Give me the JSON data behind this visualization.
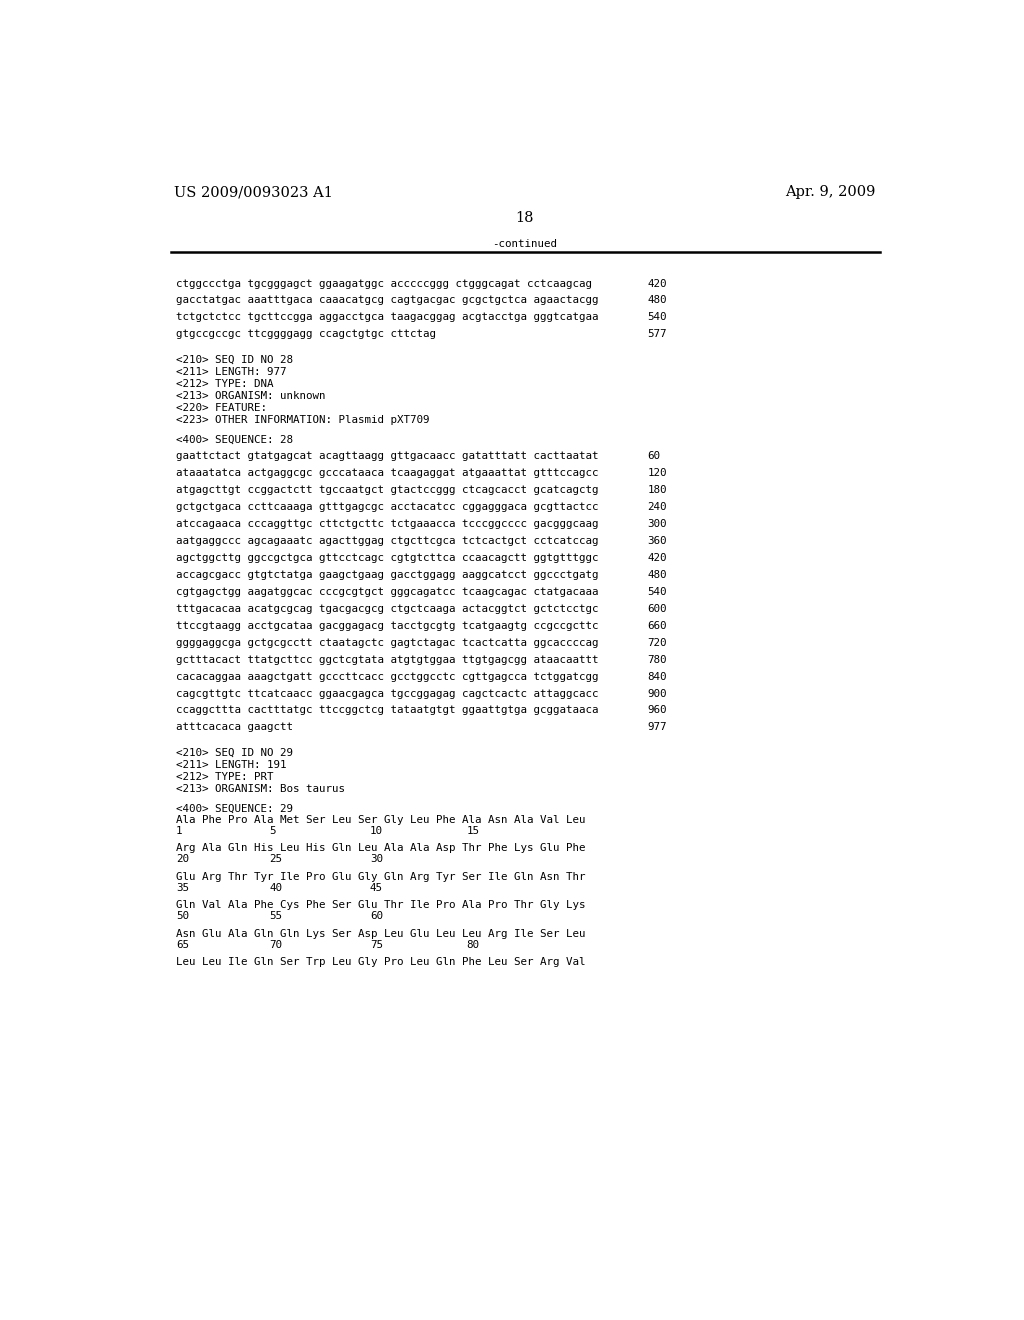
{
  "header_left": "US 2009/0093023 A1",
  "header_right": "Apr. 9, 2009",
  "page_number": "18",
  "continued_label": "-continued",
  "bg_color": "#ffffff",
  "text_color": "#000000",
  "font_size_header": 10.5,
  "font_size_mono": 7.8,
  "font_size_meta": 7.8,
  "content": [
    {
      "type": "seq_line",
      "text": "ctggccctga tgcgggagct ggaagatggc acccccggg ctgggcagat cctcaagcag",
      "num": "420"
    },
    {
      "type": "seq_line",
      "text": "gacctatgac aaatttgaca caaacatgcg cagtgacgac gcgctgctca agaactacgg",
      "num": "480"
    },
    {
      "type": "seq_line",
      "text": "tctgctctcc tgcttccgga aggacctgca taagacggag acgtacctga gggtcatgaa",
      "num": "540"
    },
    {
      "type": "seq_line",
      "text": "gtgccgccgc ttcggggagg ccagctgtgc cttctag",
      "num": "577"
    },
    {
      "type": "blank_large"
    },
    {
      "type": "meta",
      "text": "<210> SEQ ID NO 28"
    },
    {
      "type": "meta",
      "text": "<211> LENGTH: 977"
    },
    {
      "type": "meta",
      "text": "<212> TYPE: DNA"
    },
    {
      "type": "meta",
      "text": "<213> ORGANISM: unknown"
    },
    {
      "type": "meta",
      "text": "<220> FEATURE:"
    },
    {
      "type": "meta",
      "text": "<223> OTHER INFORMATION: Plasmid pXT709"
    },
    {
      "type": "blank_small"
    },
    {
      "type": "meta",
      "text": "<400> SEQUENCE: 28"
    },
    {
      "type": "seq_line",
      "text": "gaattctact gtatgagcat acagttaagg gttgacaacc gatatttatt cacttaatat",
      "num": "60"
    },
    {
      "type": "seq_line",
      "text": "ataaatatca actgaggcgc gcccataaca tcaagaggat atgaaattat gtttccagcc",
      "num": "120"
    },
    {
      "type": "seq_line",
      "text": "atgagcttgt ccggactctt tgccaatgct gtactccggg ctcagcacct gcatcagctg",
      "num": "180"
    },
    {
      "type": "seq_line",
      "text": "gctgctgaca ccttcaaaga gtttgagcgc acctacatcc cggagggaca gcgttactcc",
      "num": "240"
    },
    {
      "type": "seq_line",
      "text": "atccagaaca cccaggttgc cttctgcttc tctgaaacca tcccggcccc gacgggcaag",
      "num": "300"
    },
    {
      "type": "seq_line",
      "text": "aatgaggccc agcagaaatc agacttggag ctgcttcgca tctcactgct cctcatccag",
      "num": "360"
    },
    {
      "type": "seq_line",
      "text": "agctggcttg ggccgctgca gttcctcagc cgtgtcttca ccaacagctt ggtgtttggc",
      "num": "420"
    },
    {
      "type": "seq_line",
      "text": "accagcgacc gtgtctatga gaagctgaag gacctggagg aaggcatcct ggccctgatg",
      "num": "480"
    },
    {
      "type": "seq_line",
      "text": "cgtgagctgg aagatggcac cccgcgtgct gggcagatcc tcaagcagac ctatgacaaa",
      "num": "540"
    },
    {
      "type": "seq_line",
      "text": "tttgacacaa acatgcgcag tgacgacgcg ctgctcaaga actacggtct gctctcctgc",
      "num": "600"
    },
    {
      "type": "seq_line",
      "text": "ttccgtaagg acctgcataa gacggagacg tacctgcgtg tcatgaagtg ccgccgcttc",
      "num": "660"
    },
    {
      "type": "seq_line",
      "text": "ggggaggcga gctgcgcctt ctaatagctc gagtctagac tcactcatta ggcaccccag",
      "num": "720"
    },
    {
      "type": "seq_line",
      "text": "gctttacact ttatgcttcc ggctcgtata atgtgtggaa ttgtgagcgg ataacaattt",
      "num": "780"
    },
    {
      "type": "seq_line",
      "text": "cacacaggaa aaagctgatt gcccttcacc gcctggcctc cgttgagcca tctggatcgg",
      "num": "840"
    },
    {
      "type": "seq_line",
      "text": "cagcgttgtc ttcatcaacc ggaacgagca tgccggagag cagctcactc attaggcacc",
      "num": "900"
    },
    {
      "type": "seq_line",
      "text": "ccaggcttta cactttatgc ttccggctcg tataatgtgt ggaattgtga gcggataaca",
      "num": "960"
    },
    {
      "type": "seq_line",
      "text": "atttcacaca gaagctt",
      "num": "977"
    },
    {
      "type": "blank_large"
    },
    {
      "type": "meta",
      "text": "<210> SEQ ID NO 29"
    },
    {
      "type": "meta",
      "text": "<211> LENGTH: 191"
    },
    {
      "type": "meta",
      "text": "<212> TYPE: PRT"
    },
    {
      "type": "meta",
      "text": "<213> ORGANISM: Bos taurus"
    },
    {
      "type": "blank_small"
    },
    {
      "type": "meta",
      "text": "<400> SEQUENCE: 29"
    },
    {
      "type": "prt_line",
      "text": "Ala Phe Pro Ala Met Ser Leu Ser Gly Leu Phe Ala Asn Ala Val Leu",
      "nums": [
        [
          "1",
          "5",
          "10",
          "15"
        ],
        [
          0,
          120,
          250,
          375
        ]
      ]
    },
    {
      "type": "prt_line",
      "text": "Arg Ala Gln His Leu His Gln Leu Ala Ala Asp Thr Phe Lys Glu Phe",
      "nums": [
        [
          "20",
          "25",
          "30",
          ""
        ],
        [
          0,
          120,
          250,
          375
        ]
      ]
    },
    {
      "type": "prt_line",
      "text": "Glu Arg Thr Tyr Ile Pro Glu Gly Gln Arg Tyr Ser Ile Gln Asn Thr",
      "nums": [
        [
          "35",
          "40",
          "45",
          ""
        ],
        [
          0,
          120,
          250,
          375
        ]
      ]
    },
    {
      "type": "prt_line",
      "text": "Gln Val Ala Phe Cys Phe Ser Glu Thr Ile Pro Ala Pro Thr Gly Lys",
      "nums": [
        [
          "50",
          "55",
          "60",
          ""
        ],
        [
          0,
          120,
          250,
          375
        ]
      ]
    },
    {
      "type": "prt_line",
      "text": "Asn Glu Ala Gln Gln Lys Ser Asp Leu Glu Leu Leu Arg Ile Ser Leu",
      "nums": [
        [
          "65",
          "70",
          "75",
          "80"
        ],
        [
          0,
          120,
          250,
          375
        ]
      ]
    },
    {
      "type": "prt_line",
      "text": "Leu Leu Ile Gln Ser Trp Leu Gly Pro Leu Gln Phe Leu Ser Arg Val",
      "nums": [
        [
          "",
          "",
          "",
          ""
        ],
        [
          0,
          120,
          250,
          375
        ]
      ]
    }
  ]
}
